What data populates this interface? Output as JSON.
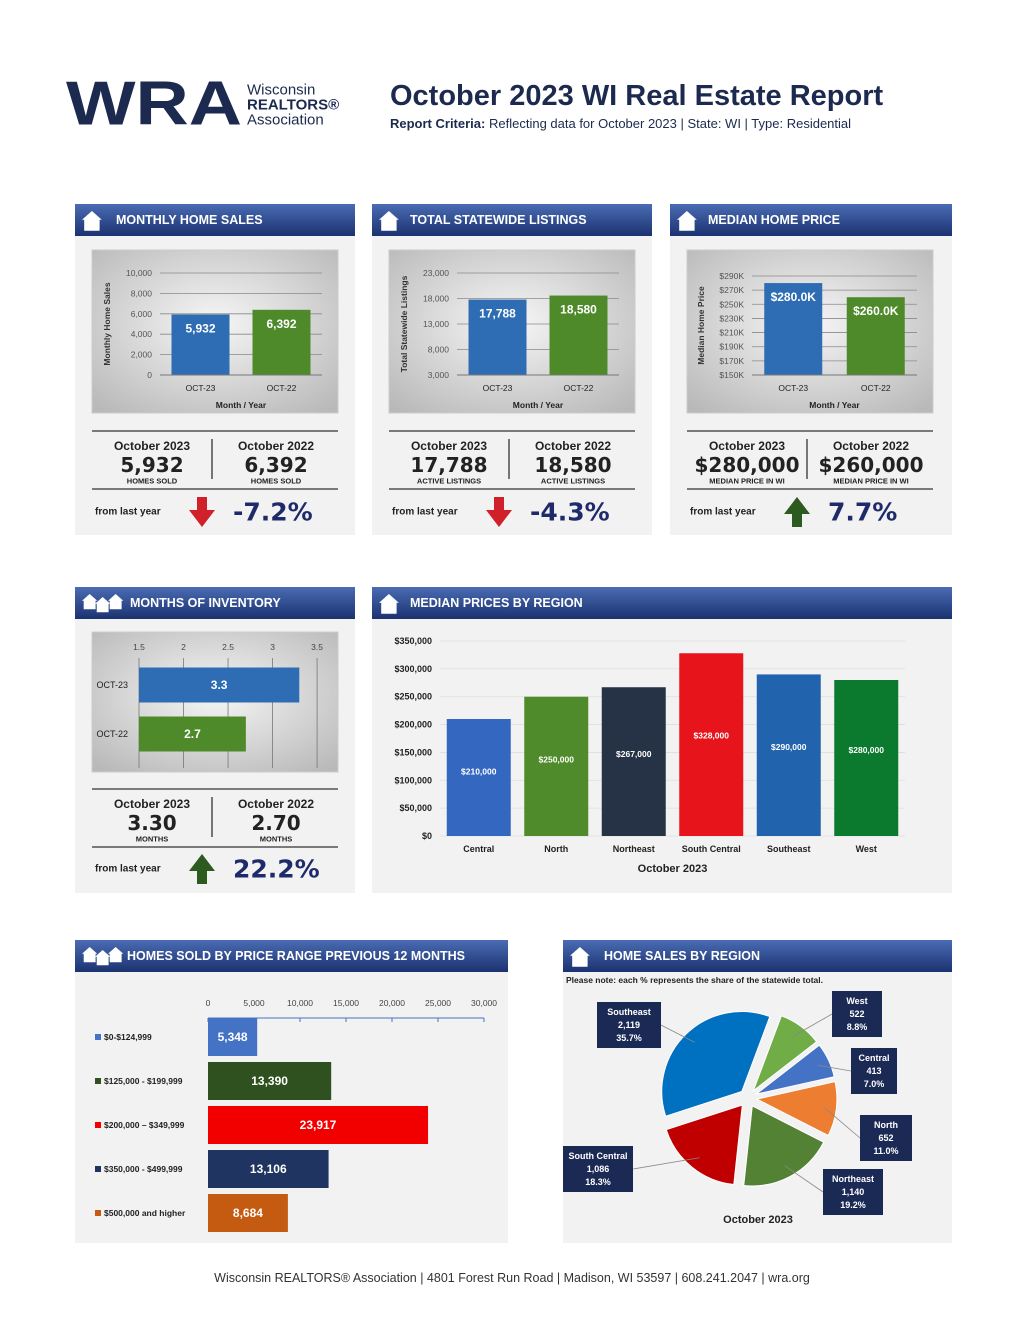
{
  "header": {
    "logo_mark": "WRA",
    "logo_line1": "Wisconsin",
    "logo_line2": "REALTORS®",
    "logo_line3": "Association",
    "title": "October 2023 WI Real Estate Report",
    "criteria_label": "Report Criteria:",
    "criteria_text": "Reflecting data for October 2023 | State: WI | Type: Residential"
  },
  "panels": [
    {
      "title": "MONTHLY HOME SALES",
      "stats": [
        {
          "period": "October 2023",
          "value": "5,932",
          "unit": "HOMES SOLD"
        },
        {
          "period": "October 2022",
          "value": "6,392",
          "unit": "HOMES SOLD"
        }
      ],
      "change_label": "from last year",
      "change": "-7.2%",
      "direction": "down"
    },
    {
      "title": "TOTAL STATEWIDE LISTINGS",
      "stats": [
        {
          "period": "October 2023",
          "value": "17,788",
          "unit": "ACTIVE LISTINGS"
        },
        {
          "period": "October 2022",
          "value": "18,580",
          "unit": "ACTIVE LISTINGS"
        }
      ],
      "change_label": "from last year",
      "change": "-4.3%",
      "direction": "down"
    },
    {
      "title": "MEDIAN HOME PRICE",
      "stats": [
        {
          "period": "October 2023",
          "value": "$280,000",
          "unit": "MEDIAN PRICE IN WI"
        },
        {
          "period": "October 2022",
          "value": "$260,000",
          "unit": "MEDIAN PRICE IN WI"
        }
      ],
      "change_label": "from last year",
      "change": "7.7%",
      "direction": "up"
    },
    {
      "title": "MONTHS OF INVENTORY",
      "stats": [
        {
          "period": "October 2023",
          "value": "3.30",
          "unit": "MONTHS"
        },
        {
          "period": "October 2022",
          "value": "2.70",
          "unit": "MONTHS"
        }
      ],
      "change_label": "from last year",
      "change": "22.2%",
      "direction": "up"
    },
    {
      "title": "MEDIAN PRICES BY REGION"
    },
    {
      "title": "HOMES SOLD BY PRICE RANGE PREVIOUS 12 MONTHS"
    },
    {
      "title": "HOME SALES BY REGION",
      "note": "Please note: each % represents the share of the statewide total."
    }
  ],
  "chart_data": [
    {
      "type": "bar",
      "categories": [
        "OCT-23",
        "OCT-22"
      ],
      "values": [
        5932,
        6392
      ],
      "value_labels": [
        "5,932",
        "6,392"
      ],
      "colors": [
        "#2e6db4",
        "#4e8a2a"
      ],
      "ylabel": "Monthly Home Sales",
      "xlabel": "Month / Year",
      "ylim": [
        0,
        10000
      ],
      "yticks": [
        0,
        {
          "value": 2000,
          "label": "2,000"
        },
        {
          "value": 4000,
          "label": "4,000"
        },
        {
          "value": 6000,
          "label": "6,000"
        },
        {
          "value": 8000,
          "label": "8,000"
        },
        {
          "value": 10000,
          "label": "10,000"
        }
      ],
      "grid": true
    },
    {
      "type": "bar",
      "categories": [
        "OCT-23",
        "OCT-22"
      ],
      "values": [
        17788,
        18580
      ],
      "value_labels": [
        "17,788",
        "18,580"
      ],
      "colors": [
        "#2e6db4",
        "#4e8a2a"
      ],
      "ylabel": "Total Statewide Listings",
      "xlabel": "Month / Year",
      "ylim": [
        3000,
        23000
      ],
      "yticks": [
        {
          "value": 3000,
          "label": "3,000"
        },
        {
          "value": 8000,
          "label": "8,000"
        },
        {
          "value": 13000,
          "label": "13,000"
        },
        {
          "value": 18000,
          "label": "18,000"
        },
        {
          "value": 23000,
          "label": "23,000"
        }
      ],
      "grid": true
    },
    {
      "type": "bar",
      "categories": [
        "OCT-23",
        "OCT-22"
      ],
      "values": [
        280000,
        260000
      ],
      "value_labels": [
        "$280.0K",
        "$260.0K"
      ],
      "colors": [
        "#2e6db4",
        "#4e8a2a"
      ],
      "ylabel": "Median Home Price",
      "xlabel": "Month / Year",
      "ylim": [
        150000,
        290000
      ],
      "yticks": [
        {
          "value": 150000,
          "label": "$150K"
        },
        {
          "value": 170000,
          "label": "$170K"
        },
        {
          "value": 190000,
          "label": "$190K"
        },
        {
          "value": 210000,
          "label": "$210K"
        },
        {
          "value": 230000,
          "label": "$230K"
        },
        {
          "value": 250000,
          "label": "$250K"
        },
        {
          "value": 270000,
          "label": "$270K"
        },
        {
          "value": 290000,
          "label": "$290K"
        }
      ],
      "grid": true
    },
    {
      "type": "hbar",
      "categories": [
        "OCT-23",
        "OCT-22"
      ],
      "values": [
        3.3,
        2.7
      ],
      "colors": [
        "#2e6db4",
        "#4e8a2a"
      ],
      "xlim": [
        1.5,
        3.6
      ],
      "xticks": [
        1.5,
        2,
        2.5,
        3,
        3.5
      ],
      "grid": true
    },
    {
      "type": "bar",
      "categories": [
        "Central",
        "North",
        "Northeast",
        "South Central",
        "Southeast",
        "West"
      ],
      "values": [
        210000,
        250000,
        267000,
        328000,
        290000,
        280000
      ],
      "value_labels": [
        "$210,000",
        "$250,000",
        "$267,000",
        "$328,000",
        "$290,000",
        "$280,000"
      ],
      "colors": [
        "#3468c0",
        "#4f8a2b",
        "#263246",
        "#e8141b",
        "#2163ad",
        "#0b7a2e"
      ],
      "xlabel": "October 2023",
      "ylim": [
        0,
        350000
      ],
      "yticks": [
        {
          "value": 0,
          "label": "$0"
        },
        {
          "value": 50000,
          "label": "$50,000"
        },
        {
          "value": 100000,
          "label": "$100,000"
        },
        {
          "value": 150000,
          "label": "$150,000"
        },
        {
          "value": 200000,
          "label": "$200,000"
        },
        {
          "value": 250000,
          "label": "$250,000"
        },
        {
          "value": 300000,
          "label": "$300,000"
        },
        {
          "value": 350000,
          "label": "$350,000"
        }
      ],
      "grid": true
    },
    {
      "type": "hbar",
      "categories": [
        "$0-$124,999",
        "$125,000 - $199,999",
        "$200,000 – $349,999",
        "$350,000 - $499,999",
        "$500,000 and higher"
      ],
      "values": [
        5348,
        13390,
        23917,
        13106,
        8684
      ],
      "value_labels": [
        "5,348",
        "13,390",
        "23,917",
        "13,106",
        "8,684"
      ],
      "colors": [
        "#4472c4",
        "#2f5120",
        "#f20000",
        "#1f3460",
        "#c55a11"
      ],
      "xlim": [
        0,
        30000
      ],
      "xticks": [
        0,
        {
          "value": 5000,
          "label": "5,000"
        },
        {
          "value": 10000,
          "label": "10,000"
        },
        {
          "value": 15000,
          "label": "15,000"
        },
        {
          "value": 20000,
          "label": "20,000"
        },
        {
          "value": 25000,
          "label": "25,000"
        },
        {
          "value": 30000,
          "label": "30,000"
        }
      ],
      "grid": false
    },
    {
      "type": "pie",
      "categories": [
        "Southeast",
        "West",
        "Central",
        "North",
        "Northeast",
        "South Central"
      ],
      "values": [
        35.7,
        8.8,
        7.0,
        11.0,
        19.2,
        18.3
      ],
      "value_labels": [
        "35.7%",
        "8.8%",
        "7.0%",
        "11.0%",
        "19.2%",
        "18.3%"
      ],
      "counts": [
        "2,119",
        "522",
        "413",
        "652",
        "1,140",
        "1,086"
      ],
      "colors": [
        "#0070c0",
        "#70ad47",
        "#4472c4",
        "#ed7d31",
        "#548235",
        "#c00000"
      ],
      "xlabel": "October 2023"
    }
  ],
  "footer": "Wisconsin REALTORS® Association | 4801 Forest Run Road | Madison, WI 53597 | 608.241.2047 | wra.org"
}
